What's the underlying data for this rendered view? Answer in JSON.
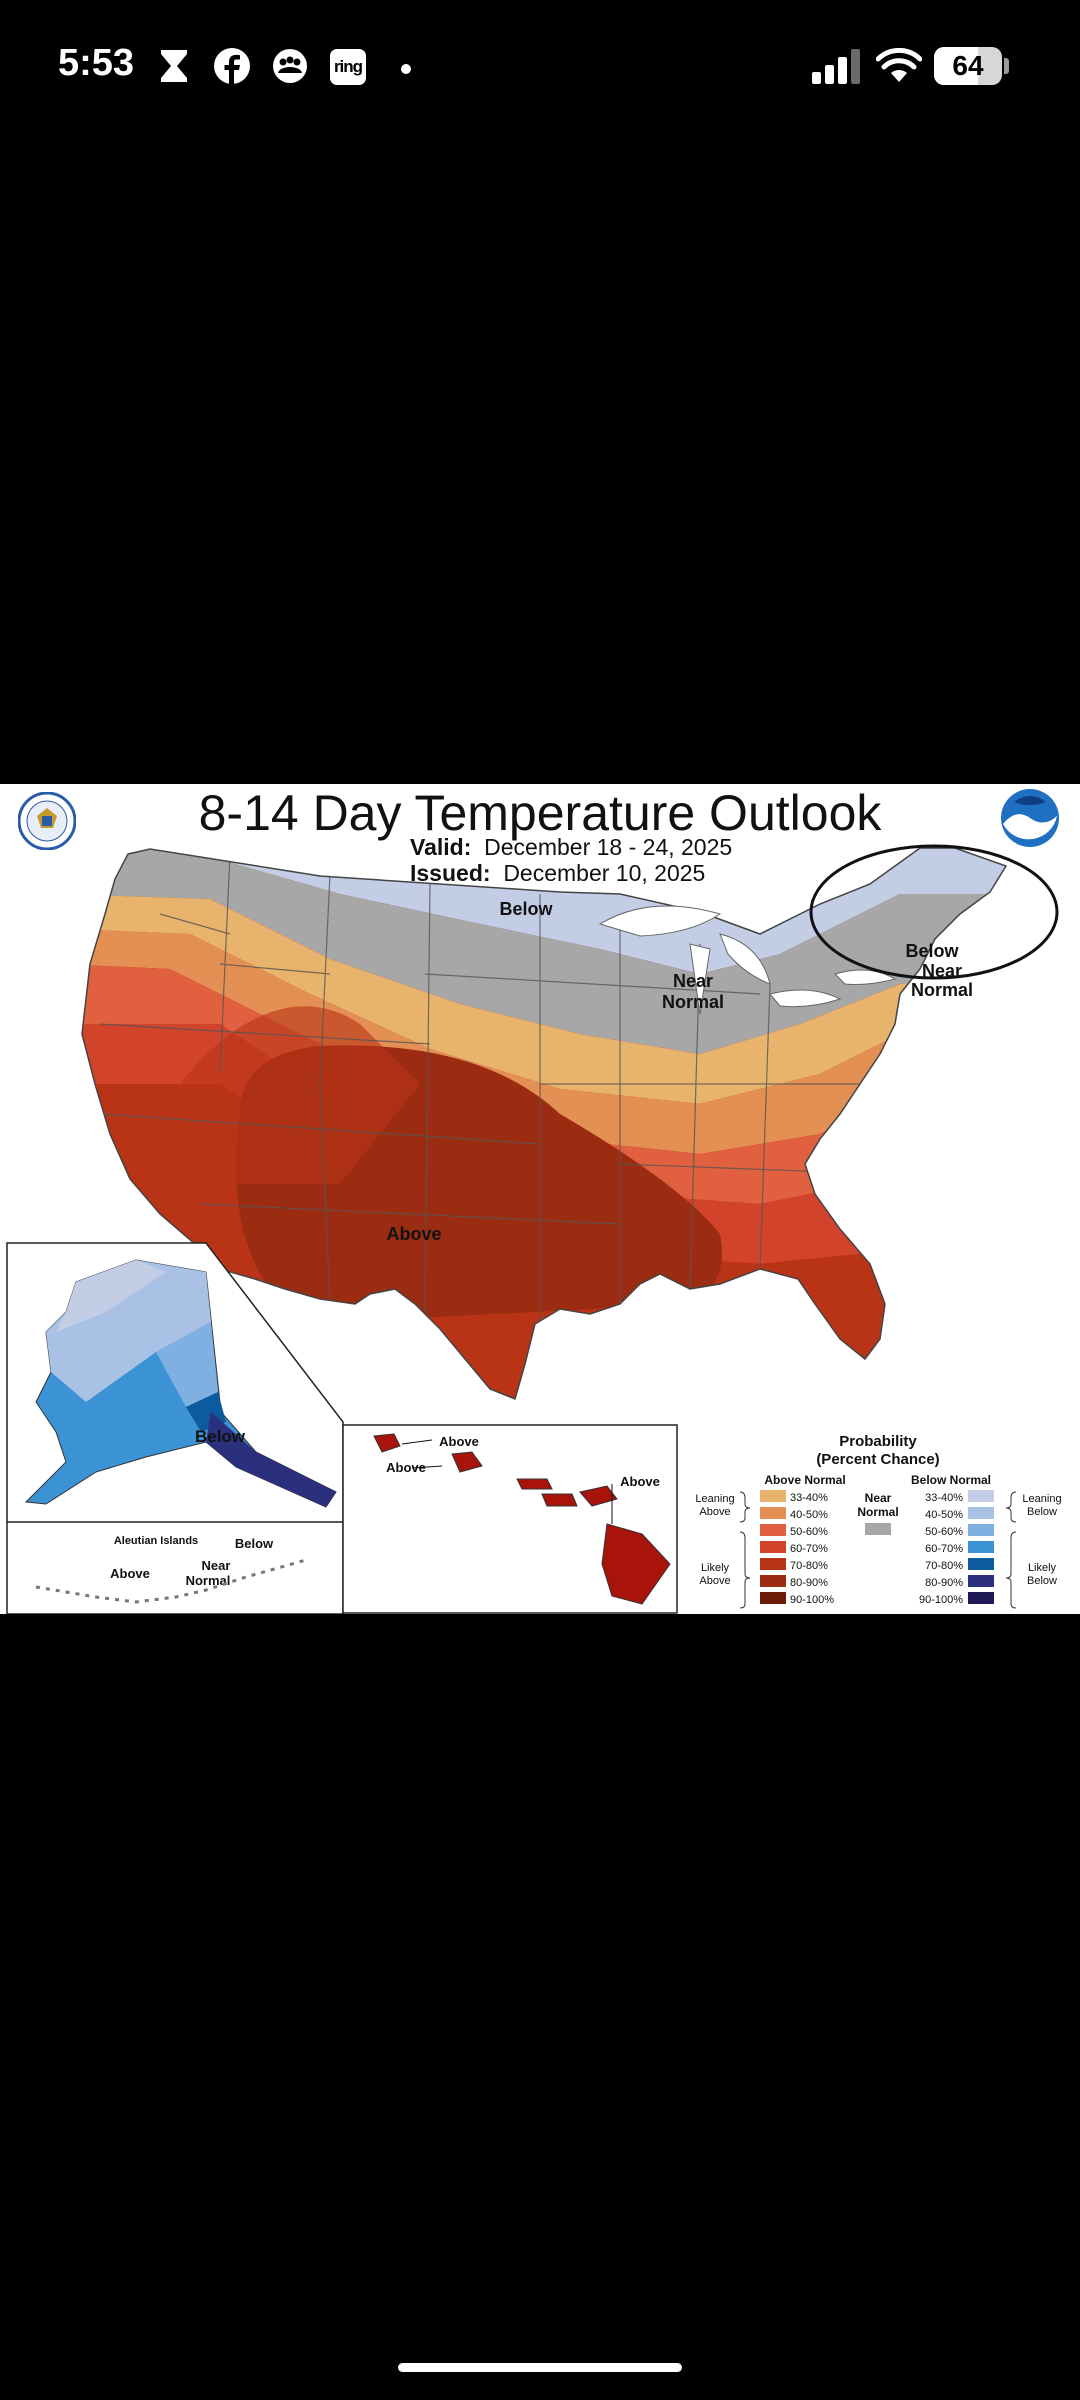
{
  "status_bar": {
    "time": "5:53",
    "notification_icons": [
      "hourglass-icon",
      "facebook-icon",
      "community-icon",
      "ring-icon",
      "more-dot-icon"
    ],
    "ring_label": "ring",
    "battery": "64",
    "battery_level": 0.64
  },
  "map": {
    "title": "8-14 Day Temperature Outlook",
    "valid_label": "Valid:",
    "valid_value": "December 18 - 24, 2025",
    "issued_label": "Issued:",
    "issued_value": "December 10, 2025",
    "region_labels": {
      "conus_below": "Below",
      "conus_near_1": "Near",
      "conus_near_2": "Normal",
      "conus_above": "Above",
      "ne_below": "Below",
      "ne_near_1": "Near",
      "ne_near_2": "Normal",
      "alaska_below": "Below",
      "aleutian_title": "Aleutian Islands",
      "aleutian_below": "Below",
      "aleutian_near_1": "Near",
      "aleutian_near_2": "Normal",
      "aleutian_above": "Above",
      "hawaii_above_1": "Above",
      "hawaii_above_2": "Above",
      "hawaii_above_3": "Above"
    },
    "legend": {
      "title_1": "Probability",
      "title_2": "(Percent Chance)",
      "above_header": "Above Normal",
      "below_header": "Below Normal",
      "near_header_1": "Near",
      "near_header_2": "Normal",
      "leaning_above_1": "Leaning",
      "leaning_above_2": "Above",
      "likely_above_1": "Likely",
      "likely_above_2": "Above",
      "leaning_below_1": "Leaning",
      "leaning_below_2": "Below",
      "likely_below_1": "Likely",
      "likely_below_2": "Below",
      "ranges": [
        "33-40%",
        "40-50%",
        "50-60%",
        "60-70%",
        "70-80%",
        "80-90%",
        "90-100%"
      ],
      "above_colors": [
        "#e8b36c",
        "#e48f54",
        "#e0603f",
        "#d2432c",
        "#b93417",
        "#9c2c11",
        "#6e1c0a"
      ],
      "below_colors": [
        "#c3cde6",
        "#a9c1e5",
        "#7fb0e1",
        "#3b93d5",
        "#0e5a9e",
        "#2a2f7e",
        "#1f1a55"
      ],
      "near_color": "#a7a7a7"
    }
  }
}
